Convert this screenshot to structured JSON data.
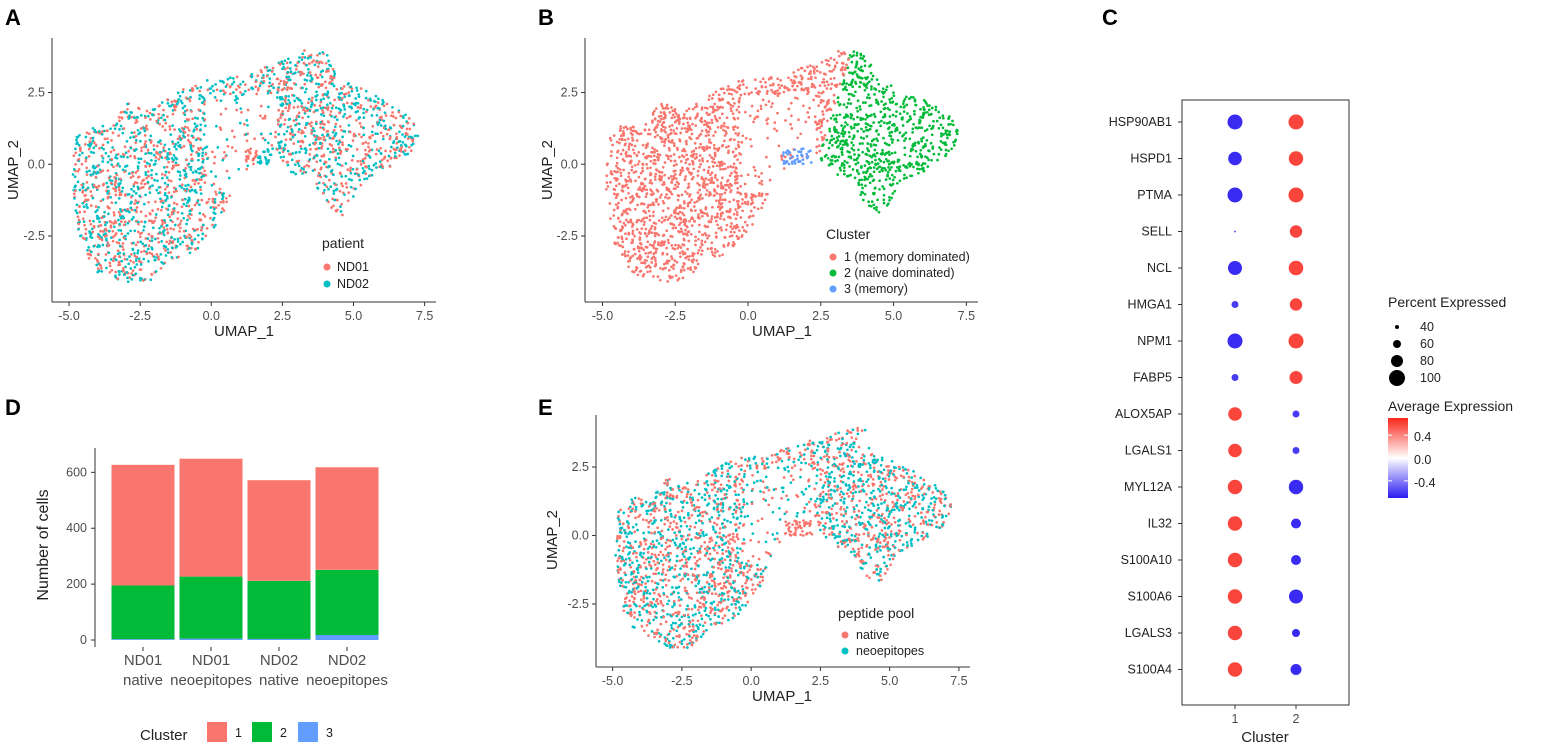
{
  "panel_labels": [
    "A",
    "B",
    "C",
    "D",
    "E"
  ],
  "colors": {
    "nd01": "#F8766D",
    "nd02": "#00BFC4",
    "cluster1": "#F8766D",
    "cluster2": "#00BA38",
    "cluster3": "#619CFF",
    "native": "#F8766D",
    "neoepitopes": "#00BFC4",
    "bar1": "#F8766D",
    "bar2": "#00BA38",
    "bar3": "#619CFF",
    "high": "#F8261A",
    "mid": "#FFFFFF",
    "low": "#2A1BF0"
  },
  "chart_data": [
    {
      "id": "A",
      "type": "scatter",
      "xlabel": "UMAP_1",
      "ylabel": "UMAP_2",
      "xlim": [
        -5.6,
        7.9
      ],
      "ylim": [
        -4.8,
        4.4
      ],
      "xticks": [
        -5.0,
        -2.5,
        0.0,
        2.5,
        5.0,
        7.5
      ],
      "xtick_labels": [
        "-5.0",
        "-2.5",
        "0.0",
        "2.5",
        "5.0",
        "7.5"
      ],
      "yticks": [
        -2.5,
        0.0,
        2.5
      ],
      "ytick_labels": [
        "-2.5",
        "0.0",
        "2.5"
      ],
      "legend": {
        "title": "patient",
        "entries": [
          "ND01",
          "ND02"
        ]
      }
    },
    {
      "id": "B",
      "type": "scatter",
      "xlabel": "UMAP_1",
      "ylabel": "UMAP_2",
      "xlim": [
        -5.6,
        7.9
      ],
      "ylim": [
        -4.8,
        4.4
      ],
      "xticks": [
        -5.0,
        -2.5,
        0.0,
        2.5,
        5.0,
        7.5
      ],
      "xtick_labels": [
        "-5.0",
        "-2.5",
        "0.0",
        "2.5",
        "5.0",
        "7.5"
      ],
      "yticks": [
        -2.5,
        0.0,
        2.5
      ],
      "ytick_labels": [
        "-2.5",
        "0.0",
        "2.5"
      ],
      "legend": {
        "title": "Cluster",
        "entries": [
          "1 (memory dominated)",
          "2 (naive dominated)",
          "3 (memory)"
        ]
      }
    },
    {
      "id": "C",
      "type": "dot",
      "xlabel": "Cluster",
      "x_categories": [
        "1",
        "2"
      ],
      "genes": [
        "HSP90AB1",
        "HSPD1",
        "PTMA",
        "SELL",
        "NCL",
        "HMGA1",
        "NPM1",
        "FABP5",
        "ALOX5AP",
        "LGALS1",
        "MYL12A",
        "IL32",
        "S100A10",
        "S100A6",
        "LGALS3",
        "S100A4"
      ],
      "pct_cluster1": [
        95,
        88,
        95,
        30,
        90,
        55,
        95,
        55,
        88,
        88,
        92,
        92,
        92,
        92,
        92,
        92
      ],
      "pct_cluster2": [
        95,
        92,
        95,
        82,
        93,
        82,
        95,
        85,
        55,
        55,
        92,
        70,
        70,
        90,
        60,
        75
      ],
      "avg_cluster1": [
        -0.65,
        -0.65,
        -0.65,
        -0.5,
        -0.65,
        -0.6,
        -0.65,
        -0.6,
        0.6,
        0.6,
        0.6,
        0.6,
        0.6,
        0.6,
        0.6,
        0.6
      ],
      "avg_cluster2": [
        0.6,
        0.6,
        0.6,
        0.6,
        0.6,
        0.6,
        0.6,
        0.6,
        -0.6,
        -0.6,
        -0.65,
        -0.65,
        -0.65,
        -0.65,
        -0.65,
        -0.65
      ],
      "size_legend": {
        "title": "Percent Expressed",
        "values": [
          40,
          60,
          80,
          100
        ],
        "labels": [
          "40",
          "60",
          "80",
          "100"
        ]
      },
      "color_legend": {
        "title": "Average Expression",
        "ticks": [
          0.4,
          0.0,
          -0.4
        ],
        "labels": [
          "0.4",
          "0.0",
          "-0.4"
        ],
        "range": [
          -0.7,
          0.7
        ]
      }
    },
    {
      "id": "D",
      "type": "bar",
      "stacked": true,
      "categories": [
        "ND01 native",
        "ND01 neoepitopes",
        "ND02 native",
        "ND02 neoepitopes"
      ],
      "category_lines": [
        [
          "ND01",
          "native"
        ],
        [
          "ND01",
          "neoepitopes"
        ],
        [
          "ND02",
          "native"
        ],
        [
          "ND02",
          "neoepitopes"
        ]
      ],
      "series": [
        {
          "name": "3",
          "values": [
            3,
            5,
            4,
            18
          ]
        },
        {
          "name": "2",
          "values": [
            192,
            222,
            208,
            233
          ]
        },
        {
          "name": "1",
          "values": [
            432,
            422,
            360,
            367
          ]
        }
      ],
      "ylabel": "Number of cells",
      "xlabel": "",
      "ylim": [
        0,
        680
      ],
      "yticks": [
        0,
        200,
        400,
        600
      ],
      "ytick_labels": [
        "0",
        "200",
        "400",
        "600"
      ],
      "legend": {
        "title": "Cluster",
        "entries": [
          "1",
          "2",
          "3"
        ]
      }
    },
    {
      "id": "E",
      "type": "scatter",
      "xlabel": "UMAP_1",
      "ylabel": "UMAP_2",
      "xlim": [
        -5.6,
        7.9
      ],
      "ylim": [
        -4.8,
        4.4
      ],
      "xticks": [
        -5.0,
        -2.5,
        0.0,
        2.5,
        5.0,
        7.5
      ],
      "xtick_labels": [
        "-5.0",
        "-2.5",
        "0.0",
        "2.5",
        "5.0",
        "7.5"
      ],
      "yticks": [
        -2.5,
        0.0,
        2.5
      ],
      "ytick_labels": [
        "-2.5",
        "0.0",
        "2.5"
      ],
      "legend": {
        "title": "peptide pool",
        "entries": [
          "native",
          "neoepitopes"
        ]
      }
    }
  ]
}
